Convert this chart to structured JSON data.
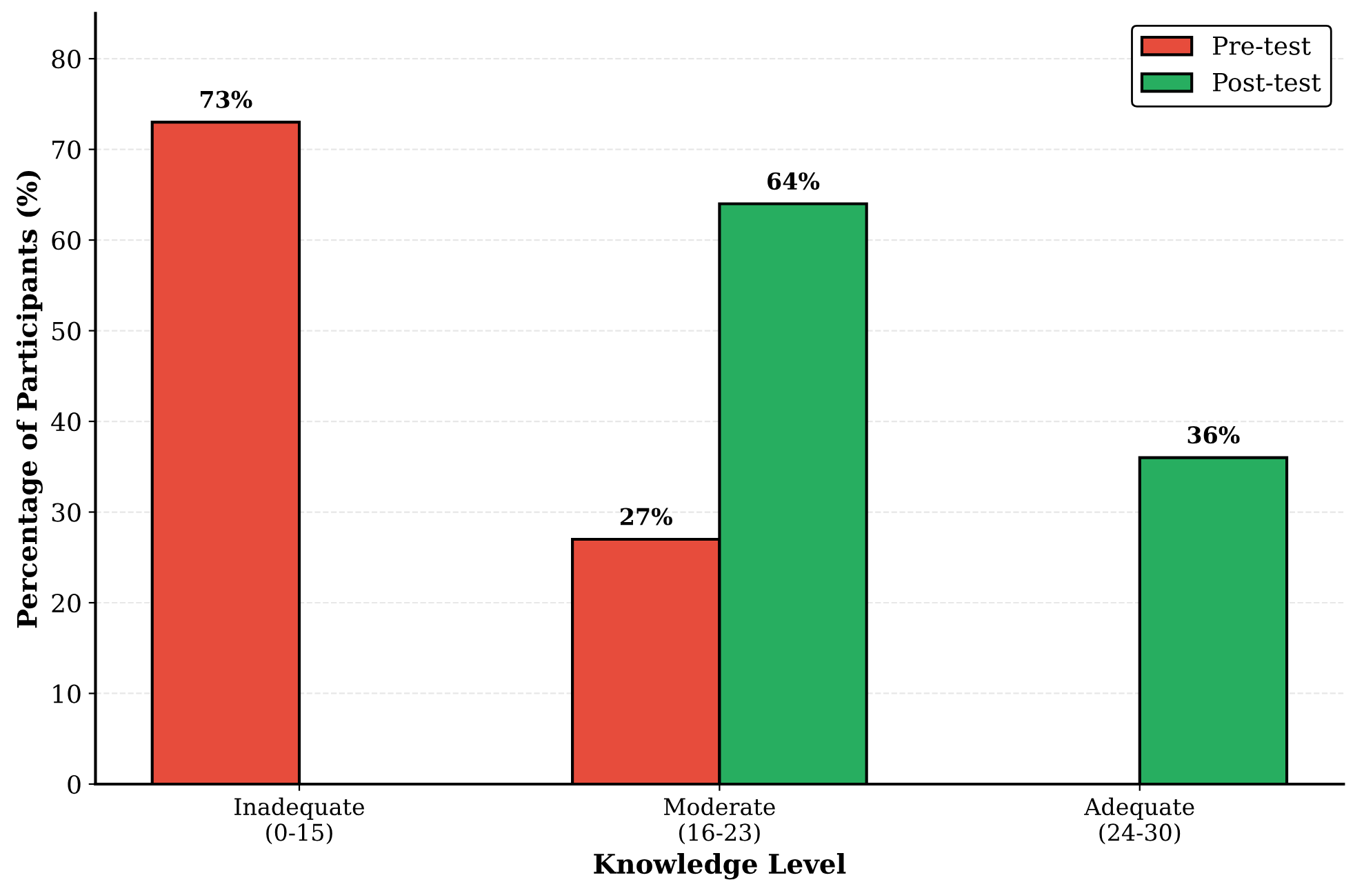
{
  "chart_data": {
    "type": "bar",
    "xlabel": "Knowledge Level",
    "ylabel": "Percentage of Participants (%)",
    "categories": [
      "Inadequate\n(0-15)",
      "Moderate\n(16-23)",
      "Adequate\n(24-30)"
    ],
    "series": [
      {
        "name": "Pre-test",
        "color": "#e74c3c",
        "values": [
          73,
          27,
          null
        ],
        "value_labels": [
          "73%",
          "27%",
          null
        ]
      },
      {
        "name": "Post-test",
        "color": "#27ae60",
        "values": [
          null,
          64,
          36
        ],
        "value_labels": [
          null,
          "64%",
          "36%"
        ]
      }
    ],
    "ylim": [
      0,
      85
    ],
    "yticks": [
      0,
      10,
      20,
      30,
      40,
      50,
      60,
      70,
      80
    ],
    "grid": "y",
    "legend": "top right"
  }
}
